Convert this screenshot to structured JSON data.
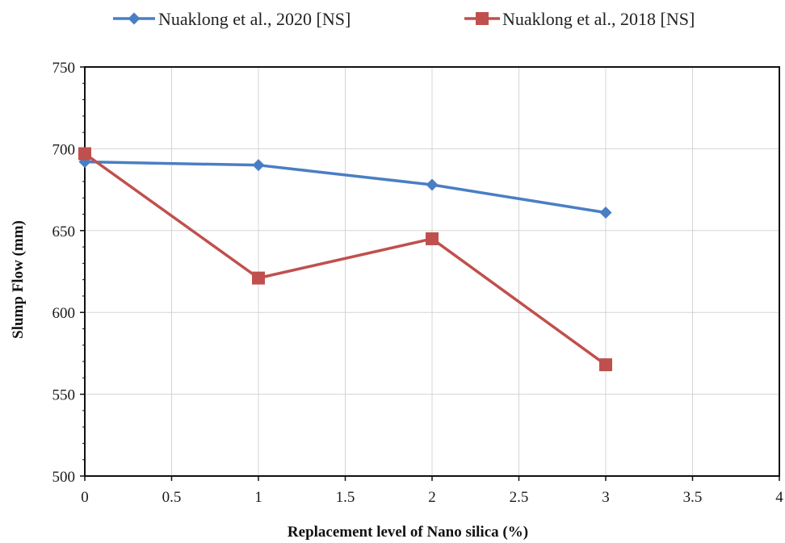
{
  "chart_data": {
    "type": "line",
    "xlabel": "Replacement level of  Nano silica (%)",
    "ylabel": "Slump Flow (mm)",
    "xlim": [
      0,
      4
    ],
    "ylim": [
      500,
      750
    ],
    "x_ticks": [
      "0",
      "0.5",
      "1",
      "1.5",
      "2",
      "2.5",
      "3",
      "3.5",
      "4"
    ],
    "y_ticks": [
      "500",
      "550",
      "600",
      "650",
      "700",
      "750"
    ],
    "grid": true,
    "legend_position": "top",
    "series": [
      {
        "name": "Nuaklong et al., 2020 [NS]",
        "color": "#4a7ec4",
        "marker": "diamond",
        "x": [
          0,
          1,
          2,
          3
        ],
        "y": [
          692,
          690,
          678,
          661
        ]
      },
      {
        "name": "Nuaklong et al., 2018 [NS]",
        "color": "#c0504d",
        "marker": "square",
        "x": [
          0,
          1,
          2,
          3
        ],
        "y": [
          697,
          621,
          645,
          568
        ]
      }
    ]
  }
}
